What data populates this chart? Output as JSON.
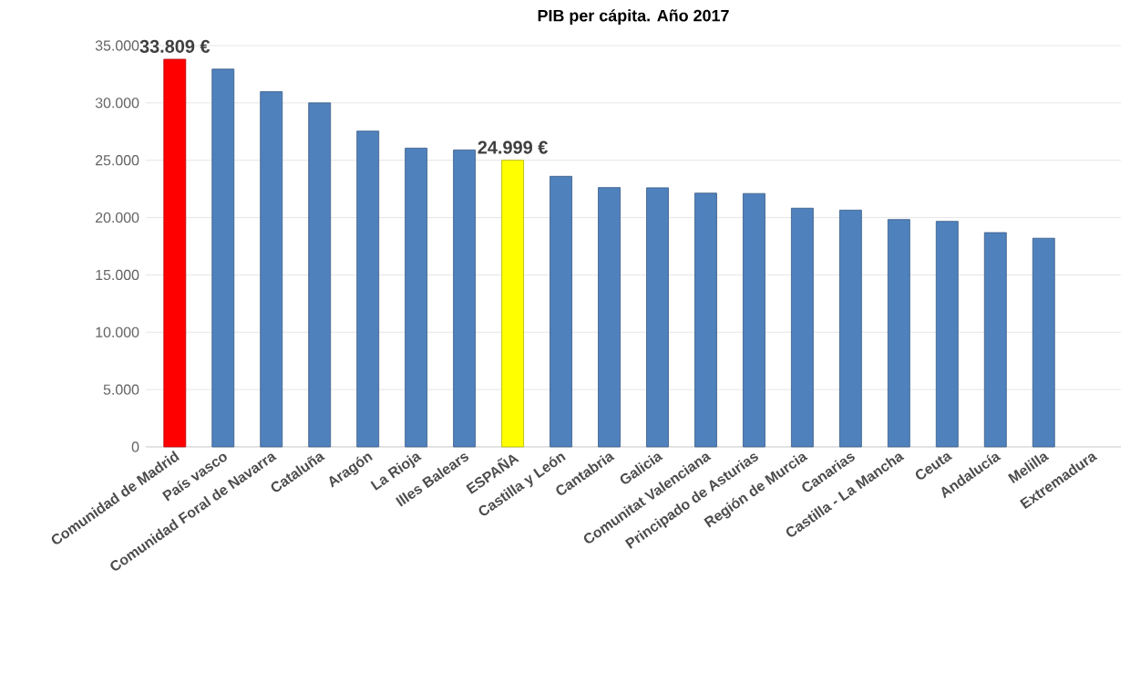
{
  "chart_data": {
    "type": "bar",
    "title": "PIB per cápita. Año 2017",
    "categories": [
      "Comunidad de Madrid",
      "País vasco",
      "Comunidad Foral de Navarra",
      "Cataluña",
      "Aragón",
      "La Rioja",
      "Illes Balears",
      "ESPAÑA",
      "Castilla y León",
      "Cantabria",
      "Galicia",
      "Comunitat Valenciana",
      "Principado de Asturias",
      "Región de Murcia",
      "Canarias",
      "Castilla - La Mancha",
      "Ceuta",
      "Andalucía",
      "Melilla",
      "Extremadura"
    ],
    "values": [
      33809,
      32950,
      30980,
      30000,
      27540,
      26060,
      25900,
      24999,
      23600,
      22620,
      22600,
      22130,
      22100,
      20820,
      20650,
      19830,
      19670,
      18690,
      18200,
      null
    ],
    "colors": [
      "#ff0000",
      "#4f81bd",
      "#4f81bd",
      "#4f81bd",
      "#4f81bd",
      "#4f81bd",
      "#4f81bd",
      "#ffff00",
      "#4f81bd",
      "#4f81bd",
      "#4f81bd",
      "#4f81bd",
      "#4f81bd",
      "#4f81bd",
      "#4f81bd",
      "#4f81bd",
      "#4f81bd",
      "#4f81bd",
      "#4f81bd",
      "#4f81bd"
    ],
    "value_labels": [
      "33.809 €",
      null,
      null,
      null,
      null,
      null,
      null,
      "24.999 €",
      null,
      null,
      null,
      null,
      null,
      null,
      null,
      null,
      null,
      null,
      null,
      null
    ],
    "ylim": [
      0,
      35000
    ],
    "yticks": [
      0,
      {
        "value": 5000,
        "label": "5.000"
      },
      {
        "value": 10000,
        "label": "10.000"
      },
      {
        "value": 15000,
        "label": "15.000"
      },
      {
        "value": 20000,
        "label": "20.000"
      },
      {
        "value": 25000,
        "label": "25.000"
      },
      {
        "value": 30000,
        "label": "30.000"
      },
      {
        "value": 35000,
        "label": "35.000"
      }
    ],
    "grid": "y"
  }
}
